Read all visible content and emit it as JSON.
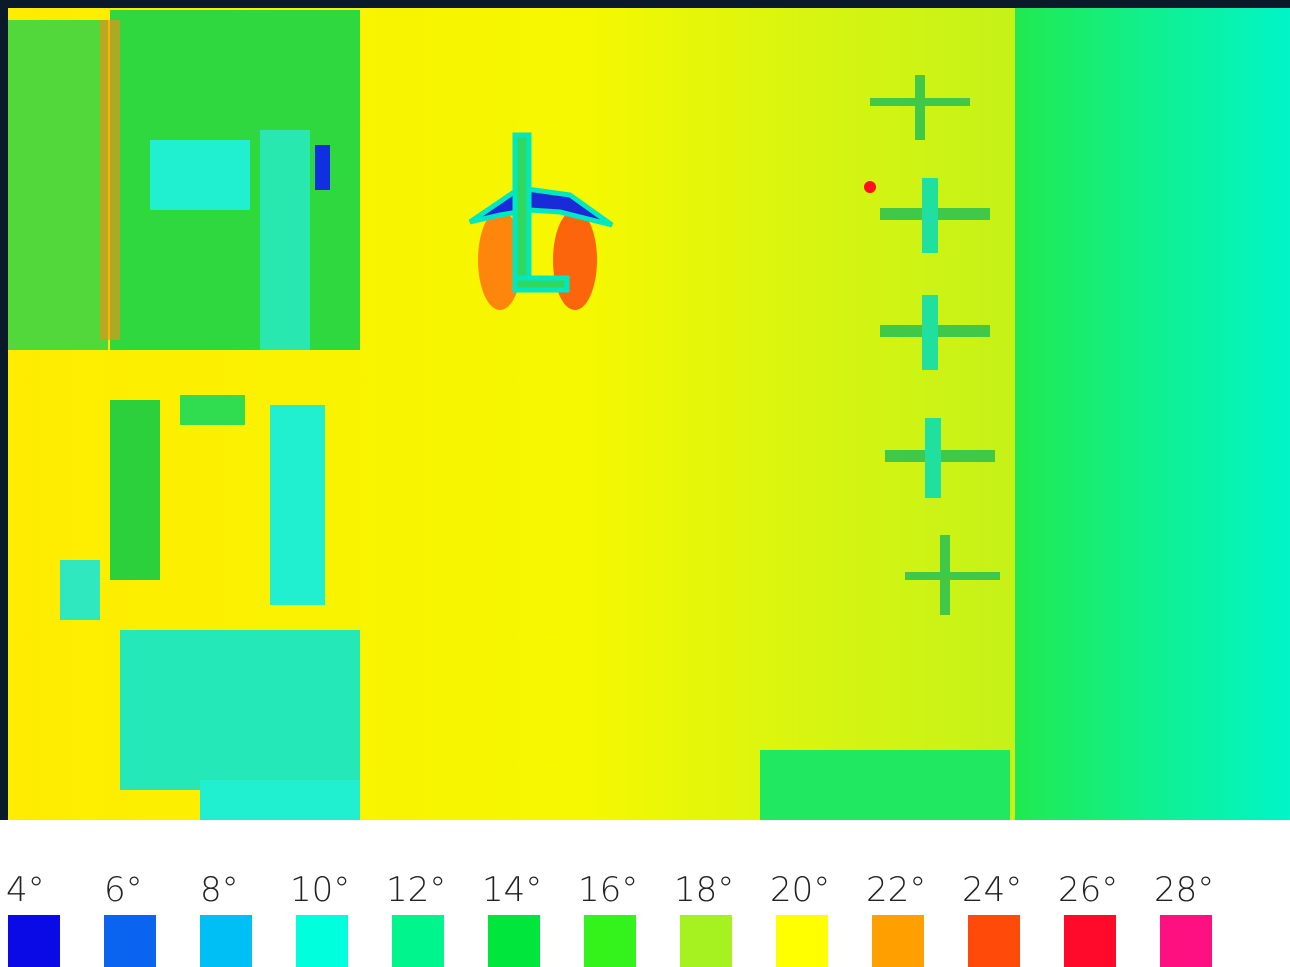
{
  "legend": {
    "items": [
      {
        "label": "4°",
        "color": "#0a0ae6"
      },
      {
        "label": "6°",
        "color": "#0a64f0"
      },
      {
        "label": "8°",
        "color": "#00bff5"
      },
      {
        "label": "10°",
        "color": "#00ffdc"
      },
      {
        "label": "12°",
        "color": "#00f68c"
      },
      {
        "label": "14°",
        "color": "#00e63c"
      },
      {
        "label": "16°",
        "color": "#34f21c"
      },
      {
        "label": "18°",
        "color": "#a6f220"
      },
      {
        "label": "20°",
        "color": "#ffff00"
      },
      {
        "label": "22°",
        "color": "#ffa000"
      },
      {
        "label": "24°",
        "color": "#ff4a0a"
      },
      {
        "label": "26°",
        "color": "#ff0a2a"
      },
      {
        "label": "28°",
        "color": "#ff1080"
      }
    ]
  }
}
